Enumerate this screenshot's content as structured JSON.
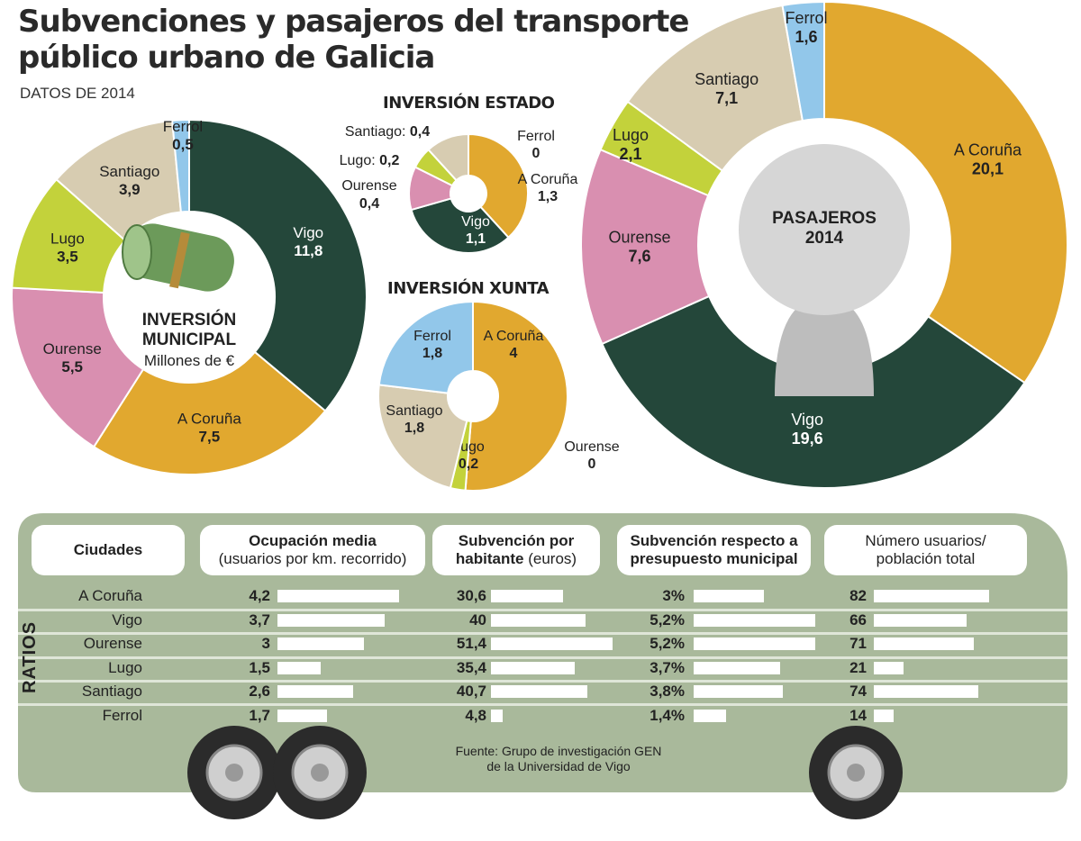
{
  "title": "Subvenciones y pasajeros del transporte público urbano de Galicia",
  "subtitle": "DATOS DE 2014",
  "colors": {
    "Vigo": "#24473a",
    "A Coruña": "#e1a82f",
    "Ourense": "#d98fb0",
    "Lugo": "#c3d23b",
    "Santiago": "#d7ccb1",
    "Ferrol": "#92c7ea",
    "bus": "#a9b99b"
  },
  "chart_data": [
    {
      "type": "pie",
      "id": "municipal",
      "title": "INVERSIÓN MUNICIPAL",
      "subtitle": "Millones de €",
      "categories": [
        "Vigo",
        "A Coruña",
        "Ourense",
        "Lugo",
        "Santiago",
        "Ferrol"
      ],
      "values": [
        11.8,
        7.5,
        5.5,
        3.5,
        3.9,
        0.5
      ],
      "labels": [
        "11,8",
        "7,5",
        "5,5",
        "3,5",
        "3,9",
        "0,5"
      ]
    },
    {
      "type": "pie",
      "id": "estado",
      "title": "INVERSIÓN ESTADO",
      "categories": [
        "Ferrol",
        "A Coruña",
        "Vigo",
        "Ourense",
        "Lugo",
        "Santiago"
      ],
      "values": [
        0,
        1.3,
        1.1,
        0.4,
        0.2,
        0.4
      ],
      "labels": [
        "0",
        "1,3",
        "1,1",
        "0,4",
        "0,2",
        "0,4"
      ]
    },
    {
      "type": "pie",
      "id": "xunta",
      "title": "INVERSIÓN XUNTA",
      "categories": [
        "A Coruña",
        "Vigo",
        "Ourense",
        "Lugo",
        "Santiago",
        "Ferrol"
      ],
      "values": [
        4,
        0,
        0,
        0.2,
        1.8,
        1.8
      ],
      "labels": [
        "4",
        "0",
        "0",
        "0,2",
        "1,8",
        "1,8"
      ]
    },
    {
      "type": "pie",
      "id": "pasajeros",
      "title": "PASAJEROS",
      "subtitle": "2014",
      "categories": [
        "A Coruña",
        "Vigo",
        "Ourense",
        "Lugo",
        "Santiago",
        "Ferrol"
      ],
      "values": [
        20.1,
        19.6,
        7.6,
        2.1,
        7.1,
        1.6
      ],
      "labels": [
        "20,1",
        "19,6",
        "7,6",
        "2,1",
        "7,1",
        "1,6"
      ]
    },
    {
      "type": "table",
      "id": "ratios",
      "row_group_label": "RATIOS",
      "columns": [
        {
          "label": "Ciudades"
        },
        {
          "label": "Ocupación media",
          "sublabel": "(usuarios por km. recorrido)"
        },
        {
          "label": "Subvención por",
          "label2": "habitante",
          "sublabel": "(euros)"
        },
        {
          "label": "Subvención respecto a",
          "label2": "presupuesto municipal"
        },
        {
          "label": "Número usuarios/",
          "label2": "población total"
        }
      ],
      "rows": [
        {
          "city": "A Coruña",
          "values": [
            "4,2",
            "30,6",
            "3%",
            "82"
          ],
          "numbers": [
            4.2,
            30.6,
            3,
            82
          ]
        },
        {
          "city": "Vigo",
          "values": [
            "3,7",
            "40",
            "5,2%",
            "66"
          ],
          "numbers": [
            3.7,
            40,
            5.2,
            66
          ]
        },
        {
          "city": "Ourense",
          "values": [
            "3",
            "51,4",
            "5,2%",
            "71"
          ],
          "numbers": [
            3,
            51.4,
            5.2,
            71
          ]
        },
        {
          "city": "Lugo",
          "values": [
            "1,5",
            "35,4",
            "3,7%",
            "21"
          ],
          "numbers": [
            1.5,
            35.4,
            3.7,
            21
          ]
        },
        {
          "city": "Santiago",
          "values": [
            "2,6",
            "40,7",
            "3,8%",
            "74"
          ],
          "numbers": [
            2.6,
            40.7,
            3.8,
            74
          ]
        },
        {
          "city": "Ferrol",
          "values": [
            "1,7",
            "4,8",
            "1,4%",
            "14"
          ],
          "numbers": [
            1.7,
            4.8,
            1.4,
            14
          ]
        }
      ]
    }
  ],
  "source": {
    "line1": "Fuente: Grupo de investigación GEN",
    "line2": "de la Universidad de Vigo"
  }
}
